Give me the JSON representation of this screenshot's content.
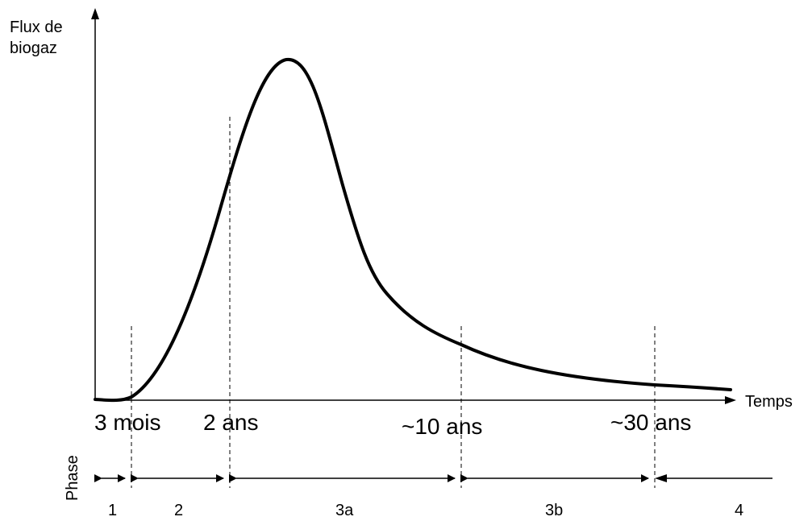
{
  "y_axis_label": [
    "Flux de",
    "biogaz"
  ],
  "x_axis_label": "Temps",
  "time_marks": [
    "3 mois",
    "2 ans",
    "~10 ans",
    "~30 ans"
  ],
  "phase_title": "Phase",
  "phases": [
    "1",
    "2",
    "3a",
    "3b",
    "4"
  ],
  "colors": {
    "stroke": "#000000",
    "background": "#ffffff"
  }
}
